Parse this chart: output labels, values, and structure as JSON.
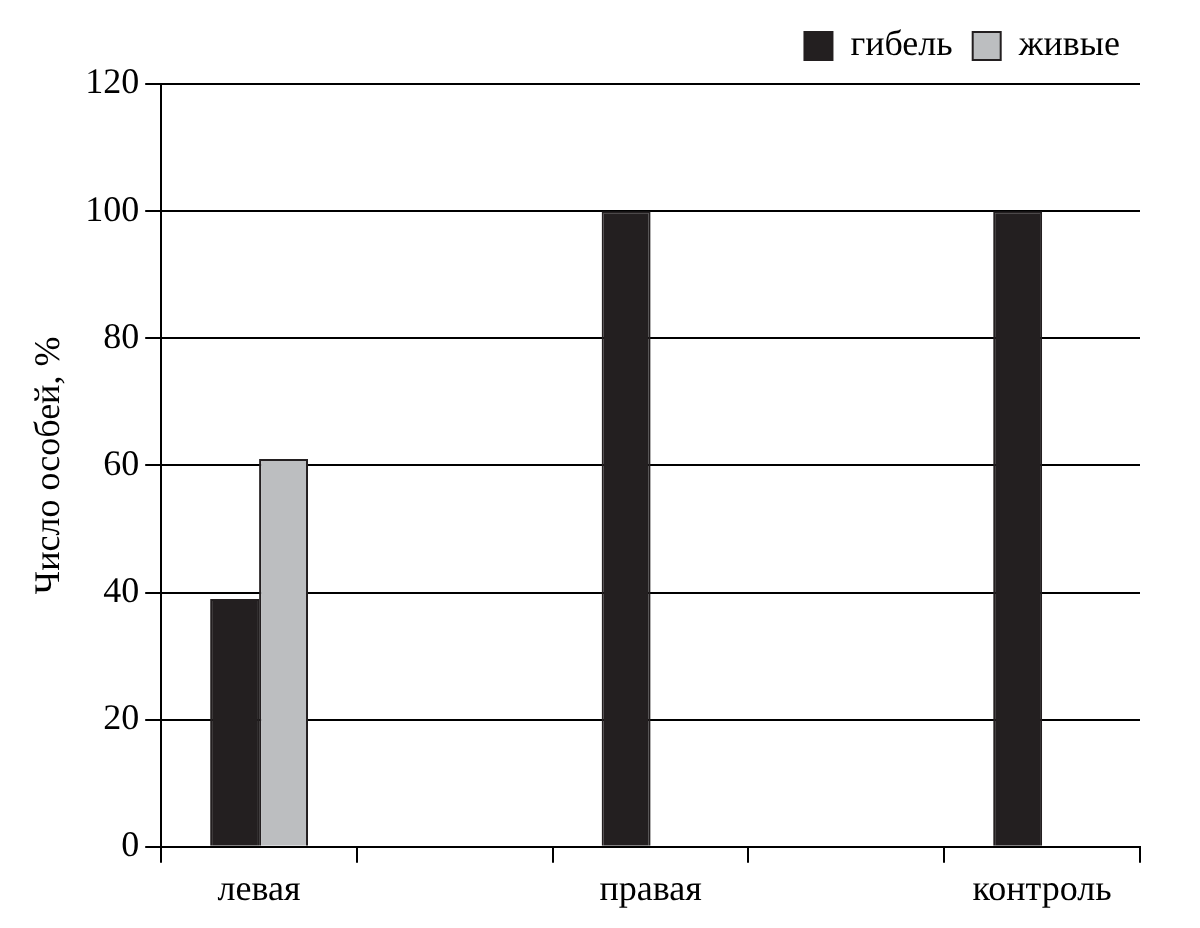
{
  "chart_data": {
    "type": "bar",
    "ylabel": "Число особей, %",
    "categories": [
      "левая",
      null,
      "правая",
      null,
      "контроль"
    ],
    "series": [
      {
        "name": "гибель",
        "color": "#231f20",
        "values": [
          39,
          null,
          100,
          null,
          100
        ]
      },
      {
        "name": "живые",
        "color": "#bcbec0",
        "values": [
          61,
          null,
          0,
          null,
          0
        ]
      }
    ],
    "ylim": [
      0,
      120
    ],
    "yticks": [
      0,
      20,
      40,
      60,
      80,
      100,
      120
    ],
    "grid": "y",
    "legend": "top right"
  }
}
